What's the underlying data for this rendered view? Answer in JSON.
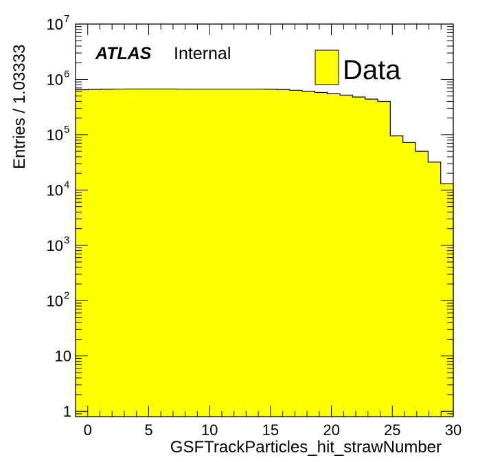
{
  "chart_data": {
    "type": "bar",
    "style": "histogram",
    "title": "",
    "xlabel": "GSFTrackParticles_hit_strawNumber",
    "ylabel": "Entries / 1.03333",
    "x_ticks": [
      "0",
      "5",
      "10",
      "15",
      "20",
      "25",
      "30"
    ],
    "y_ticks": [
      {
        "base": "1",
        "exp": ""
      },
      {
        "base": "10",
        "exp": ""
      },
      {
        "base": "10",
        "exp": "2"
      },
      {
        "base": "10",
        "exp": "3"
      },
      {
        "base": "10",
        "exp": "4"
      },
      {
        "base": "10",
        "exp": "5"
      },
      {
        "base": "10",
        "exp": "6"
      },
      {
        "base": "10",
        "exp": "7"
      }
    ],
    "xlim": [
      -1,
      30
    ],
    "ylim": [
      0.8,
      10000000
    ],
    "y_scale": "log",
    "grid": false,
    "bin_start": -1,
    "bin_width": 1.03333,
    "values": [
      650000,
      660000,
      665000,
      668000,
      670000,
      670000,
      670000,
      670000,
      668000,
      668000,
      668000,
      668000,
      668000,
      668000,
      668000,
      665000,
      655000,
      635000,
      610000,
      580000,
      550000,
      520000,
      480000,
      440000,
      400000,
      95000,
      72000,
      50000,
      32000,
      13000
    ],
    "series": [
      {
        "name": "Data",
        "color": "#ffff00"
      }
    ],
    "legend_position": "top-right",
    "annotation": {
      "label": "ATLAS",
      "sublabel": "Internal"
    }
  }
}
